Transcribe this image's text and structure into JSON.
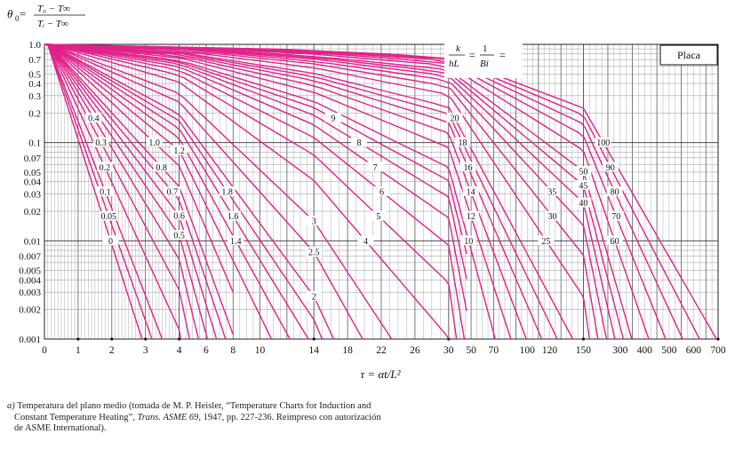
{
  "chart_data": {
    "type": "line",
    "title": "",
    "ylabel": {
      "prefix": "θ",
      "sub": "0",
      "eq": " = ",
      "numerator": "T₀ − T∞",
      "denominator": "Tᵢ − T∞"
    },
    "xlabel": "τ = αt/L²",
    "y_scale": "log",
    "ylim": [
      0.001,
      1.0
    ],
    "y_ticks": [
      "1.0",
      "0.7",
      "0.5",
      "0.4",
      "0.3",
      "0.2",
      "0.1",
      "0.07",
      "0.05",
      "0.04",
      "0.03",
      "0.02",
      "0.01",
      "0.007",
      "0.005",
      "0.004",
      "0.003",
      "0.002",
      "0.001"
    ],
    "y_tick_values": [
      1.0,
      0.7,
      0.5,
      0.4,
      0.3,
      0.2,
      0.1,
      0.07,
      0.05,
      0.04,
      0.03,
      0.02,
      0.01,
      0.007,
      0.005,
      0.004,
      0.003,
      0.002,
      0.001
    ],
    "x_scale": "piecewise-linear",
    "x_segments": [
      {
        "from": 0,
        "to": 4,
        "step": 1,
        "minor": 0.1
      },
      {
        "from": 4,
        "to": 14,
        "step": 2,
        "minor": 0.5
      },
      {
        "from": 14,
        "to": 30,
        "step": 4,
        "minor": 1
      },
      {
        "from": 30,
        "to": 150,
        "step": 20,
        "minor": 5
      },
      {
        "from": 150,
        "to": 700,
        "step": 100,
        "minor": 25
      }
    ],
    "x_ticks": [
      "0",
      "1",
      "2",
      "3",
      "4",
      "6",
      "8",
      "10",
      "14",
      "18",
      "22",
      "26",
      "30",
      "50",
      "70",
      "100",
      "120",
      "150",
      "300",
      "400",
      "500",
      "600",
      "700"
    ],
    "x_tick_values": [
      0,
      1,
      2,
      3,
      4,
      6,
      8,
      10,
      14,
      18,
      22,
      26,
      30,
      50,
      70,
      100,
      120,
      150,
      300,
      400,
      500,
      600,
      700
    ],
    "legend_title": {
      "k": "k",
      "hL": "hL",
      "eq": "=",
      "one": "1",
      "bi": "Bi",
      "eq2": "="
    },
    "box_label": "Placa",
    "grid": true,
    "line_color": "#e0228a",
    "series_k_over_hL": [
      0,
      0.05,
      0.1,
      0.2,
      0.3,
      0.4,
      0.5,
      0.6,
      0.7,
      0.8,
      1.0,
      1.2,
      1.4,
      1.6,
      1.8,
      2,
      2.5,
      3,
      4,
      5,
      6,
      7,
      8,
      9,
      10,
      12,
      14,
      16,
      18,
      20,
      25,
      30,
      35,
      40,
      45,
      50,
      60,
      70,
      80,
      90,
      100
    ],
    "curve_labels": [
      "0",
      "0.05",
      "0.1",
      "0.2",
      "0.3",
      "0.4",
      "0.5",
      "0.6",
      "0.7",
      "0.8",
      "1.0",
      "1.2",
      "1.4",
      "1.6",
      "1.8",
      "2",
      "2.5",
      "3",
      "4",
      "5",
      "6",
      "7",
      "8",
      "9",
      "10",
      "12",
      "14",
      "16",
      "18",
      "20",
      "25",
      "30",
      "35",
      "40",
      "45",
      "50",
      "60",
      "70",
      "80",
      "90",
      "100"
    ]
  },
  "caption": {
    "marker": "a)",
    "text1": " Temperatura del plano medio (tomada de M. P. Heisler, “Temperature Charts for Induction and",
    "text2": "Constant Temperature Heating”, ",
    "journal": "Trans. ASME 69,",
    "text3": " 1947, pp. 227-236. Reimpreso con autorización",
    "text4": "de ASME International)."
  }
}
